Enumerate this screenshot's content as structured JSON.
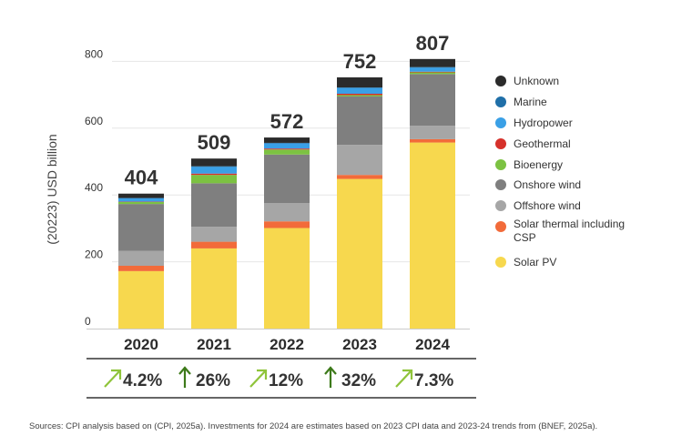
{
  "chart_data": {
    "type": "bar",
    "stacked": true,
    "ylabel": "(20223) USD billion",
    "ylim": [
      0,
      850
    ],
    "yticks": [
      0,
      200,
      400,
      600,
      800
    ],
    "categories": [
      "2020",
      "2021",
      "2022",
      "2023",
      "2024"
    ],
    "totals": [
      "404",
      "509",
      "572",
      "752",
      "807"
    ],
    "growth": [
      {
        "label": "4.2%",
        "arrow": "diagonal"
      },
      {
        "label": "26%",
        "arrow": "vertical"
      },
      {
        "label": "12%",
        "arrow": "diagonal"
      },
      {
        "label": "32%",
        "arrow": "vertical"
      },
      {
        "label": "7.3%",
        "arrow": "diagonal"
      }
    ],
    "series": [
      {
        "name": "Solar PV",
        "color": "#f7d84e",
        "values": [
          172,
          240,
          301,
          448,
          557
        ]
      },
      {
        "name": "Solar thermal including CSP",
        "color": "#f26b3a",
        "values": [
          16,
          20,
          20,
          12,
          10
        ]
      },
      {
        "name": "Offshore wind",
        "color": "#a6a6a6",
        "values": [
          45,
          45,
          55,
          90,
          40
        ]
      },
      {
        "name": "Onshore wind",
        "color": "#7f7f7f",
        "values": [
          140,
          130,
          145,
          145,
          155
        ]
      },
      {
        "name": "Bioenergy",
        "color": "#7cc242",
        "values": [
          6,
          25,
          15,
          4,
          5
        ]
      },
      {
        "name": "Geothermal",
        "color": "#d6312b",
        "values": [
          1,
          4,
          3,
          4,
          2
        ]
      },
      {
        "name": "Hydropower",
        "color": "#3aa0e6",
        "values": [
          10,
          20,
          15,
          17,
          12
        ]
      },
      {
        "name": "Marine",
        "color": "#1f6fa8",
        "values": [
          1,
          2,
          2,
          2,
          2
        ]
      },
      {
        "name": "Unknown",
        "color": "#2b2b2b",
        "values": [
          13,
          23,
          16,
          30,
          24
        ]
      }
    ],
    "legend": {
      "placement": "right",
      "order": [
        "Unknown",
        "Marine",
        "Hydropower",
        "Geothermal",
        "Bioenergy",
        "Onshore wind",
        "Offshore wind",
        "Solar thermal including CSP",
        "Solar PV"
      ]
    },
    "arrow_color": "#3d7a1a",
    "arrow_light_color": "#8fc43a"
  },
  "source_note": "Sources: CPI analysis based on (CPI, 2025a). Investments for 2024 are estimates based on 2023 CPI data and 2023-24 trends from (BNEF, 2025a)."
}
